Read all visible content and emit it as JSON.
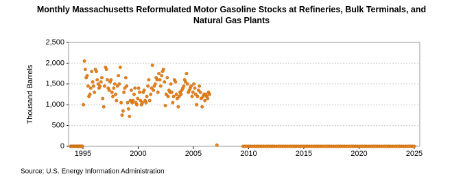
{
  "chart_data": {
    "type": "scatter",
    "title": "Monthly Massachusetts Reformulated Motor Gasoline Stocks at Refineries, Bulk Terminals, and Natural Gas Plants",
    "ylabel": "Thousand Barrels",
    "source": "Source: U.S. Energy Information Administration",
    "color": "#e8831c",
    "xlim": [
      1993.7,
      2025.5
    ],
    "xticks": [
      1995,
      2000,
      2005,
      2010,
      2015,
      2020,
      2025
    ],
    "ylim": [
      0,
      2500
    ],
    "yticks": [
      0,
      {
        "value": 500,
        "label": "500"
      },
      {
        "value": 1000,
        "label": "1,000"
      },
      {
        "value": 1500,
        "label": "1,500"
      },
      {
        "value": 2000,
        "label": "2,000"
      },
      {
        "value": 2500,
        "label": "2,500"
      }
    ],
    "grid": true,
    "x": [
      1993.88,
      1993.96,
      1994.04,
      1994.13,
      1994.21,
      1994.29,
      1994.38,
      1994.46,
      1994.54,
      1994.63,
      1994.71,
      1994.79,
      1994.88,
      1994.96,
      1995.04,
      1995.13,
      1995.21,
      1995.29,
      1995.38,
      1995.46,
      1995.54,
      1995.63,
      1995.71,
      1995.79,
      1995.88,
      1995.96,
      1996.04,
      1996.13,
      1996.21,
      1996.29,
      1996.38,
      1996.46,
      1996.54,
      1996.63,
      1996.71,
      1996.79,
      1996.88,
      1996.96,
      1997.04,
      1997.13,
      1997.21,
      1997.29,
      1997.38,
      1997.46,
      1997.54,
      1997.63,
      1997.71,
      1997.79,
      1997.88,
      1997.96,
      1998.04,
      1998.13,
      1998.21,
      1998.29,
      1998.38,
      1998.46,
      1998.54,
      1998.63,
      1998.71,
      1998.79,
      1998.88,
      1998.96,
      1999.04,
      1999.13,
      1999.21,
      1999.29,
      1999.38,
      1999.46,
      1999.54,
      1999.63,
      1999.71,
      1999.79,
      1999.88,
      1999.96,
      2000.04,
      2000.13,
      2000.21,
      2000.29,
      2000.38,
      2000.46,
      2000.54,
      2000.63,
      2000.71,
      2000.79,
      2000.88,
      2000.96,
      2001.04,
      2001.13,
      2001.21,
      2001.29,
      2001.38,
      2001.46,
      2001.54,
      2001.63,
      2001.71,
      2001.79,
      2001.88,
      2001.96,
      2002.04,
      2002.13,
      2002.21,
      2002.29,
      2002.38,
      2002.46,
      2002.54,
      2002.63,
      2002.71,
      2002.79,
      2002.88,
      2002.96,
      2003.04,
      2003.13,
      2003.21,
      2003.29,
      2003.38,
      2003.46,
      2003.54,
      2003.63,
      2003.71,
      2003.79,
      2003.88,
      2003.96,
      2004.04,
      2004.13,
      2004.21,
      2004.29,
      2004.38,
      2004.46,
      2004.54,
      2004.63,
      2004.71,
      2004.79,
      2004.88,
      2004.96,
      2005.04,
      2005.13,
      2005.21,
      2005.29,
      2005.38,
      2005.46,
      2005.54,
      2005.63,
      2005.71,
      2005.79,
      2005.88,
      2005.96,
      2006.04,
      2006.13,
      2006.21,
      2006.29,
      2006.38,
      2006.46,
      2007.13,
      2009.5,
      2009.67,
      2009.83,
      2010,
      2010.17,
      2010.33,
      2010.5,
      2010.67,
      2010.83,
      2011,
      2011.17,
      2011.33,
      2011.5,
      2011.67,
      2011.83,
      2012,
      2012.17,
      2012.33,
      2012.5,
      2012.67,
      2012.83,
      2013,
      2013.17,
      2013.33,
      2013.5,
      2013.67,
      2013.83,
      2014,
      2014.17,
      2014.33,
      2014.5,
      2014.67,
      2014.83,
      2015,
      2015.17,
      2015.33,
      2015.5,
      2015.67,
      2015.83,
      2016,
      2016.17,
      2016.33,
      2016.5,
      2016.67,
      2016.83,
      2017,
      2017.17,
      2017.33,
      2017.5,
      2017.67,
      2017.83,
      2018,
      2018.17,
      2018.33,
      2018.5,
      2018.67,
      2018.83,
      2019,
      2019.17,
      2019.33,
      2019.5,
      2019.67,
      2019.83,
      2020,
      2020.17,
      2020.33,
      2020.5,
      2020.67,
      2020.83,
      2021,
      2021.17,
      2021.33,
      2021.5,
      2021.67,
      2021.83,
      2022,
      2022.17,
      2022.33,
      2022.5,
      2022.67,
      2022.83,
      2023,
      2023.17,
      2023.33,
      2023.5,
      2023.67,
      2023.83,
      2024,
      2024.17,
      2024.33,
      2024.5,
      2024.67,
      2024.83,
      2025
    ],
    "values": [
      0,
      0,
      0,
      0,
      0,
      0,
      0,
      0,
      0,
      0,
      0,
      0,
      0,
      0,
      1000,
      2050,
      1850,
      1650,
      1700,
      1450,
      1200,
      1250,
      1400,
      1800,
      1550,
      1450,
      1300,
      1850,
      1800,
      1600,
      1500,
      1400,
      1450,
      1550,
      1650,
      1150,
      950,
      1450,
      1900,
      1850,
      1600,
      1400,
      1350,
      1550,
      1600,
      1300,
      1200,
      1400,
      1500,
      1250,
      1100,
      1450,
      1700,
      1500,
      1900,
      1050,
      750,
      850,
      1300,
      1400,
      1650,
      1450,
      1050,
      900,
      720,
      1100,
      1350,
      1050,
      1100,
      1250,
      1400,
      1050,
      1000,
      1150,
      1400,
      1300,
      1100,
      1000,
      1050,
      1300,
      1350,
      1100,
      1050,
      1200,
      1450,
      1600,
      1100,
      1250,
      1400,
      1950,
      1350,
      1450,
      1500,
      1650,
      1600,
      1300,
      1750,
      1600,
      1450,
      1700,
      1800,
      1850,
      1550,
      980,
      1250,
      1650,
      1200,
      1350,
      1300,
      1500,
      1300,
      1050,
      1200,
      1600,
      1550,
      1250,
      1150,
      950,
      1200,
      1300,
      1250,
      1350,
      1400,
      1450,
      1600,
      1550,
      1750,
      1500,
      1300,
      1350,
      1400,
      1450,
      1200,
      1300,
      1500,
      1400,
      1250,
      1000,
      1200,
      1350,
      1450,
      1300,
      1150,
      950,
      1200,
      1250,
      1100,
      1250,
      1200,
      1150,
      1300,
      1250,
      30,
      0,
      0,
      0,
      0,
      0,
      0,
      0,
      0,
      0,
      0,
      0,
      0,
      0,
      0,
      0,
      0,
      0,
      0,
      0,
      0,
      0,
      0,
      0,
      0,
      0,
      0,
      0,
      0,
      0,
      0,
      0,
      0,
      0,
      0,
      0,
      0,
      0,
      0,
      0,
      0,
      0,
      0,
      0,
      0,
      0,
      0,
      0,
      0,
      0,
      0,
      0,
      0,
      0,
      0,
      0,
      0,
      0,
      0,
      0,
      0,
      0,
      0,
      0,
      0,
      0,
      0,
      0,
      0,
      0,
      0,
      0,
      0,
      0,
      0,
      0,
      0,
      0,
      0,
      0,
      0,
      0,
      0,
      0,
      0,
      0,
      0,
      0,
      0,
      0,
      0,
      0,
      0,
      0,
      0
    ]
  }
}
